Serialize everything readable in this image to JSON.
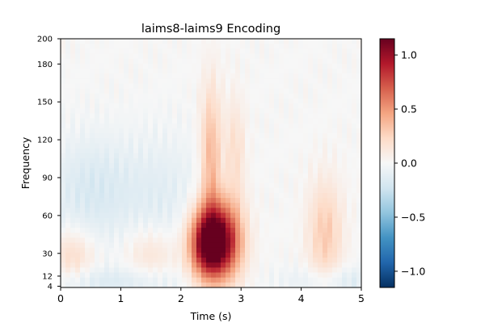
{
  "chart_data": {
    "type": "heatmap",
    "title": "laims8-laims9 Encoding",
    "xlabel": "Time (s)",
    "ylabel": "Frequency",
    "xlim": [
      0,
      5
    ],
    "ylim": [
      3,
      200
    ],
    "x_ticks": [
      "0",
      "1",
      "2",
      "3",
      "4",
      "5"
    ],
    "x_tick_values": [
      0,
      1,
      2,
      3,
      4,
      5
    ],
    "y_ticks": [
      "4",
      "12",
      "30",
      "60",
      "90",
      "120",
      "150",
      "180",
      "200"
    ],
    "y_tick_values": [
      4,
      12,
      30,
      60,
      90,
      120,
      150,
      180,
      200
    ],
    "colormap": "RdBu_r",
    "colorbar": {
      "range": [
        -1.15,
        1.15
      ],
      "ticks": [
        "−1.0",
        "−0.5",
        "0.0",
        "0.5",
        "1.0"
      ],
      "tick_values": [
        -1.0,
        -0.5,
        0.0,
        0.5,
        1.0
      ]
    },
    "features": [
      {
        "time": 2.45,
        "freq": 38,
        "value": 1.15,
        "sigma_t": 0.22,
        "sigma_f": 20
      },
      {
        "time": 2.75,
        "freq": 40,
        "value": 0.7,
        "sigma_t": 0.22,
        "sigma_f": 22
      },
      {
        "time": 2.5,
        "freq": 105,
        "value": 0.4,
        "sigma_t": 0.12,
        "sigma_f": 40
      },
      {
        "time": 2.9,
        "freq": 110,
        "value": 0.2,
        "sigma_t": 0.12,
        "sigma_f": 30
      },
      {
        "time": 4.4,
        "freq": 45,
        "value": 0.3,
        "sigma_t": 0.2,
        "sigma_f": 30
      },
      {
        "time": 0.2,
        "freq": 28,
        "value": 0.22,
        "sigma_t": 0.25,
        "sigma_f": 15
      },
      {
        "time": 1.5,
        "freq": 30,
        "value": 0.18,
        "sigma_t": 0.3,
        "sigma_f": 15
      },
      {
        "time": 0.5,
        "freq": 80,
        "value": -0.18,
        "sigma_t": 0.5,
        "sigma_f": 30
      },
      {
        "time": 1.7,
        "freq": 75,
        "value": -0.12,
        "sigma_t": 0.5,
        "sigma_f": 35
      },
      {
        "time": 0.8,
        "freq": 8,
        "value": -0.15,
        "sigma_t": 0.9,
        "sigma_f": 8
      },
      {
        "time": 4.6,
        "freq": 8,
        "value": -0.15,
        "sigma_t": 0.6,
        "sigma_f": 8
      }
    ]
  }
}
